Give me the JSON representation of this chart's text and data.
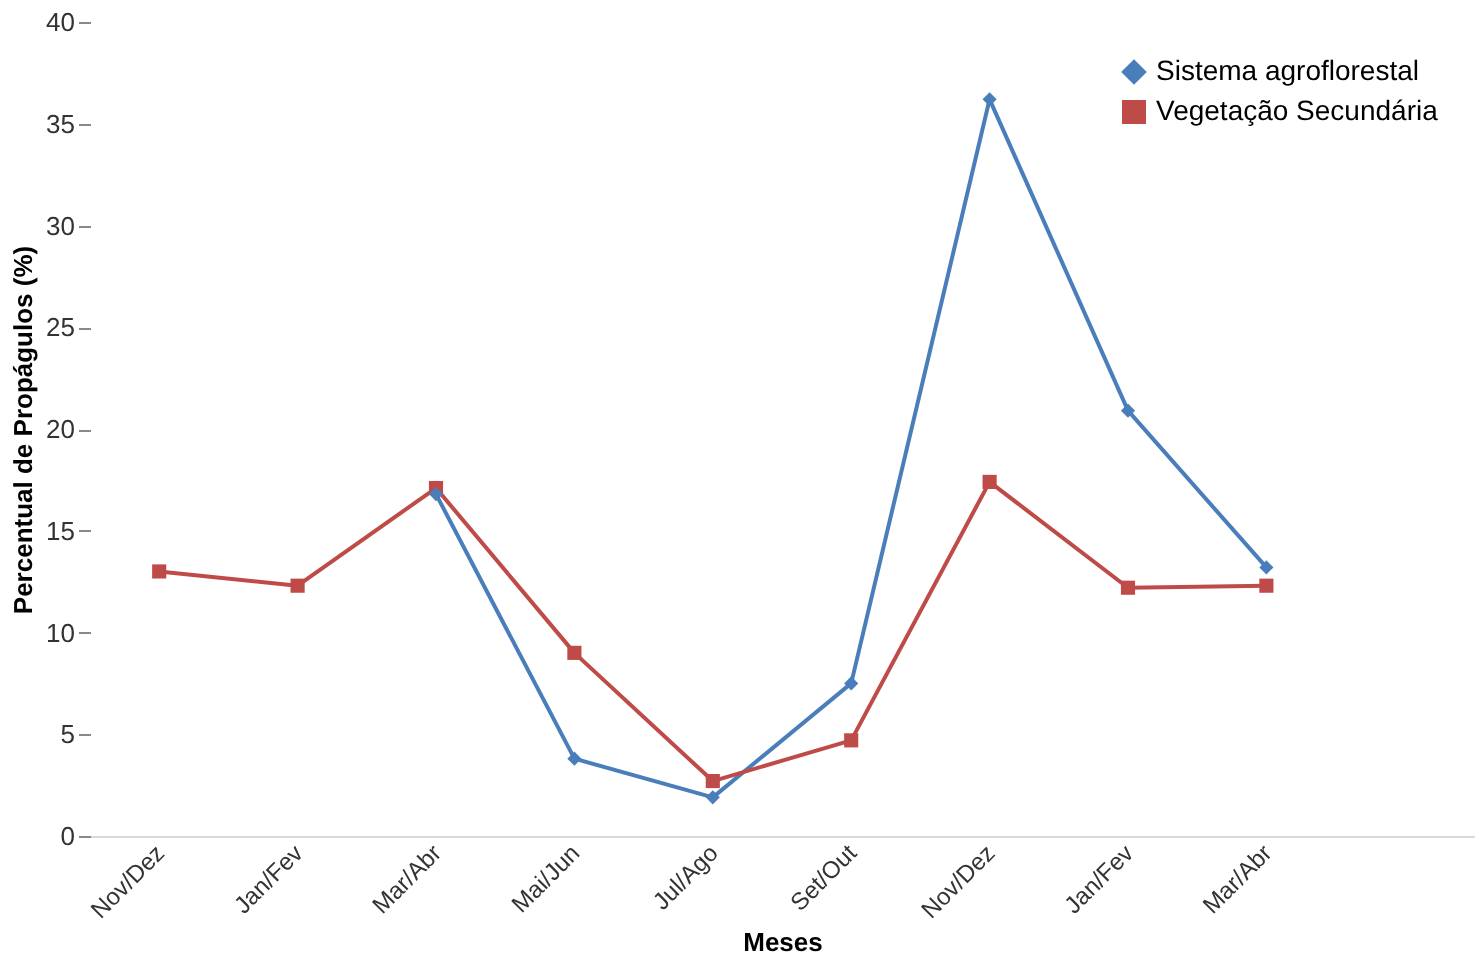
{
  "chart_data": {
    "type": "line",
    "xlabel": "Meses",
    "ylabel": "Percentual de Propágulos (%)",
    "categories": [
      "Nov/Dez",
      "Jan/Fev",
      "Mar/Abr",
      "Mai/Jun",
      "Jul/Ago",
      "Set/Out",
      "Nov/Dez",
      "Jan/Fev",
      "Mar/Abr"
    ],
    "series": [
      {
        "name": "Sistema agroflorestal",
        "color": "#4a7ebb",
        "marker": "diamond",
        "values": [
          null,
          null,
          16.8,
          3.8,
          1.9,
          7.5,
          36.2,
          20.9,
          13.2
        ]
      },
      {
        "name": "Vegetação Secundária",
        "color": "#be4b48",
        "marker": "square",
        "values": [
          13.0,
          12.3,
          17.1,
          9.0,
          2.7,
          4.7,
          17.4,
          12.2,
          12.3
        ]
      }
    ],
    "ylim": [
      0,
      40
    ],
    "yticks": [
      0,
      5,
      10,
      15,
      20,
      25,
      30,
      35,
      40
    ],
    "grid": false,
    "legend": "top right",
    "line_style": "solid"
  }
}
